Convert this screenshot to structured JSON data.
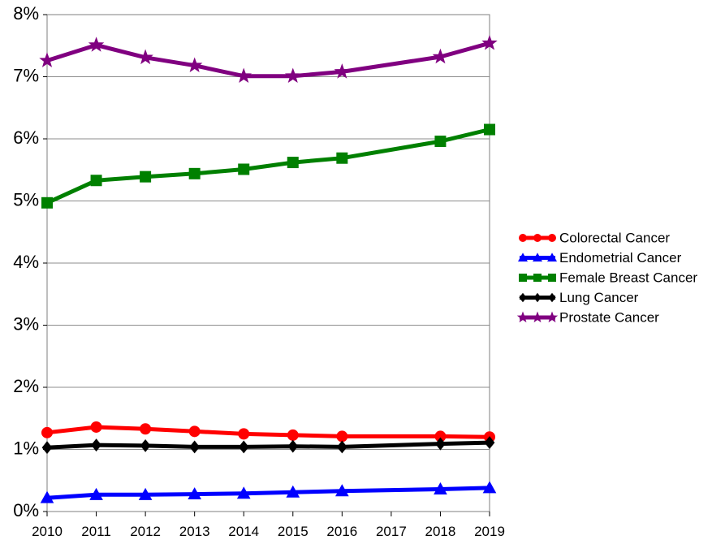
{
  "chart_data": {
    "type": "line",
    "title": "",
    "xlabel": "",
    "ylabel": "",
    "x": [
      2010,
      2011,
      2012,
      2013,
      2014,
      2015,
      2016,
      2017,
      2018,
      2019
    ],
    "ylim": [
      0,
      8
    ],
    "y_ticks": [
      "0%",
      "1%",
      "2%",
      "3%",
      "4%",
      "5%",
      "6%",
      "7%",
      "8%"
    ],
    "x_ticks": [
      "2010",
      "2011",
      "2012",
      "2013",
      "2014",
      "2015",
      "2016",
      "2017",
      "2018",
      "2019"
    ],
    "grid": "horizontal",
    "legend_position": "right",
    "series": [
      {
        "name": "Colorectal Cancer",
        "color": "#ff0000",
        "marker": "circle",
        "points": [
          [
            2010,
            1.27
          ],
          [
            2011,
            1.36
          ],
          [
            2012,
            1.33
          ],
          [
            2013,
            1.29
          ],
          [
            2014,
            1.25
          ],
          [
            2015,
            1.23
          ],
          [
            2016,
            1.21
          ],
          [
            2018,
            1.21
          ],
          [
            2019,
            1.2
          ]
        ]
      },
      {
        "name": "Endometrial Cancer",
        "color": "#0000ff",
        "marker": "triangle",
        "points": [
          [
            2010,
            0.22
          ],
          [
            2011,
            0.27
          ],
          [
            2012,
            0.27
          ],
          [
            2013,
            0.28
          ],
          [
            2014,
            0.29
          ],
          [
            2015,
            0.31
          ],
          [
            2016,
            0.33
          ],
          [
            2018,
            0.36
          ],
          [
            2019,
            0.38
          ]
        ]
      },
      {
        "name": "Female Breast Cancer",
        "color": "#008000",
        "marker": "square",
        "points": [
          [
            2010,
            4.97
          ],
          [
            2011,
            5.33
          ],
          [
            2012,
            5.39
          ],
          [
            2013,
            5.44
          ],
          [
            2014,
            5.51
          ],
          [
            2015,
            5.62
          ],
          [
            2016,
            5.69
          ],
          [
            2018,
            5.96
          ],
          [
            2019,
            6.15
          ]
        ]
      },
      {
        "name": "Lung Cancer",
        "color": "#000000",
        "marker": "diamond",
        "points": [
          [
            2010,
            1.03
          ],
          [
            2011,
            1.07
          ],
          [
            2012,
            1.06
          ],
          [
            2013,
            1.04
          ],
          [
            2014,
            1.04
          ],
          [
            2015,
            1.05
          ],
          [
            2016,
            1.04
          ],
          [
            2018,
            1.09
          ],
          [
            2019,
            1.11
          ]
        ]
      },
      {
        "name": "Prostate Cancer",
        "color": "#800080",
        "marker": "star",
        "points": [
          [
            2010,
            7.26
          ],
          [
            2011,
            7.51
          ],
          [
            2012,
            7.31
          ],
          [
            2013,
            7.18
          ],
          [
            2014,
            7.01
          ],
          [
            2015,
            7.01
          ],
          [
            2016,
            7.08
          ],
          [
            2018,
            7.32
          ],
          [
            2019,
            7.54
          ]
        ]
      }
    ]
  }
}
